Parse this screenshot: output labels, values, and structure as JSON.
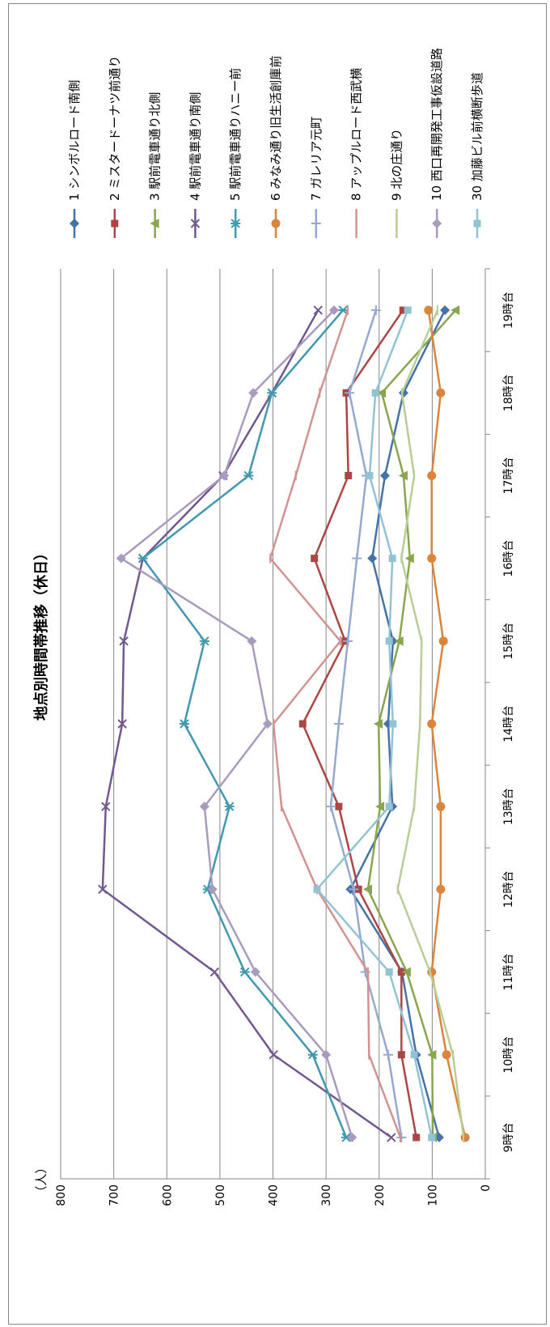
{
  "chart_data": {
    "type": "line",
    "title": "地点別時間帯推移（休日）",
    "ylabel": "（人）",
    "categories": [
      "9時台",
      "10時台",
      "11時台",
      "12時台",
      "13時台",
      "14時台",
      "15時台",
      "16時台",
      "17時台",
      "18時台",
      "19時台"
    ],
    "ylim": [
      0,
      800
    ],
    "yticks": [
      0,
      100,
      200,
      300,
      400,
      500,
      600,
      700,
      800
    ],
    "grid": true,
    "legend_position": "right",
    "series": [
      {
        "name": "1 シンボルロード南側",
        "color": "#4572A7",
        "marker": "diamond",
        "values": [
          87,
          130,
          157,
          254,
          175,
          183,
          174,
          213,
          189,
          154,
          76
        ]
      },
      {
        "name": "2 ミスタードーナツ前通り",
        "color": "#AA4643",
        "marker": "square",
        "values": [
          130,
          158,
          158,
          239,
          276,
          344,
          264,
          322,
          258,
          262,
          155
        ]
      },
      {
        "name": "3 駅前電車通り北側",
        "color": "#89A54E",
        "marker": "triangle",
        "values": [
          99,
          100,
          148,
          221,
          198,
          201,
          162,
          142,
          154,
          195,
          56
        ]
      },
      {
        "name": "4 駅前電車通り南側",
        "color": "#71588F",
        "marker": "x",
        "values": [
          177,
          399,
          510,
          721,
          715,
          684,
          681,
          645,
          494,
          402,
          315
        ]
      },
      {
        "name": "5 駅前電車通りハニー前",
        "color": "#4198AF",
        "marker": "star",
        "values": [
          262,
          325,
          453,
          523,
          482,
          567,
          529,
          645,
          446,
          402,
          268
        ]
      },
      {
        "name": "6 みなみ通り旧生活創庫前",
        "color": "#DB843D",
        "marker": "circle",
        "values": [
          38,
          73,
          101,
          84,
          84,
          101,
          79,
          101,
          101,
          84,
          107
        ]
      },
      {
        "name": "7 ガレリア元町",
        "color": "#93A9CF",
        "marker": "plus",
        "values": [
          158,
          183,
          226,
          248,
          291,
          276,
          259,
          242,
          224,
          256,
          206
        ]
      },
      {
        "name": "8 アップルロード西武横",
        "color": "#D19392",
        "marker": "dash",
        "values": [
          160,
          219,
          221,
          317,
          384,
          399,
          273,
          405,
          357,
          312,
          259
        ]
      },
      {
        "name": "9 北の庄通り",
        "color": "#B9CD96",
        "marker": "dash",
        "values": [
          41,
          61,
          104,
          165,
          134,
          123,
          120,
          158,
          134,
          157,
          90
        ]
      },
      {
        "name": "10 西口再開発工事仮設道路",
        "color": "#A99BBD",
        "marker": "diamond",
        "values": [
          251,
          300,
          433,
          514,
          529,
          410,
          440,
          686,
          492,
          437,
          285
        ]
      },
      {
        "name": "30 加藤ビル前横断歩道",
        "color": "#92C3D5",
        "marker": "square",
        "values": [
          101,
          134,
          181,
          317,
          181,
          174,
          181,
          175,
          218,
          207,
          146
        ]
      }
    ]
  }
}
